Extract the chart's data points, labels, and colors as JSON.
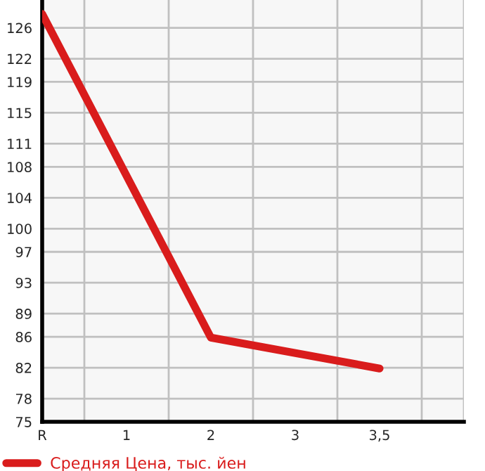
{
  "chart_data": {
    "type": "line",
    "categories": [
      "R",
      "1",
      "2",
      "3",
      "3,5"
    ],
    "series": [
      {
        "name": "Средняя Цена, тыс. йен",
        "color": "#d91c1c",
        "values": [
          127.8,
          null,
          85.9,
          null,
          81.9
        ]
      }
    ],
    "ylim": [
      75,
      129.6
    ],
    "yticks": [
      75,
      78,
      82,
      86,
      89,
      93,
      97,
      100,
      104,
      108,
      111,
      115,
      119,
      122,
      126
    ],
    "grid": true,
    "legend": "bottom",
    "marker": "none",
    "line_style": "solid"
  }
}
